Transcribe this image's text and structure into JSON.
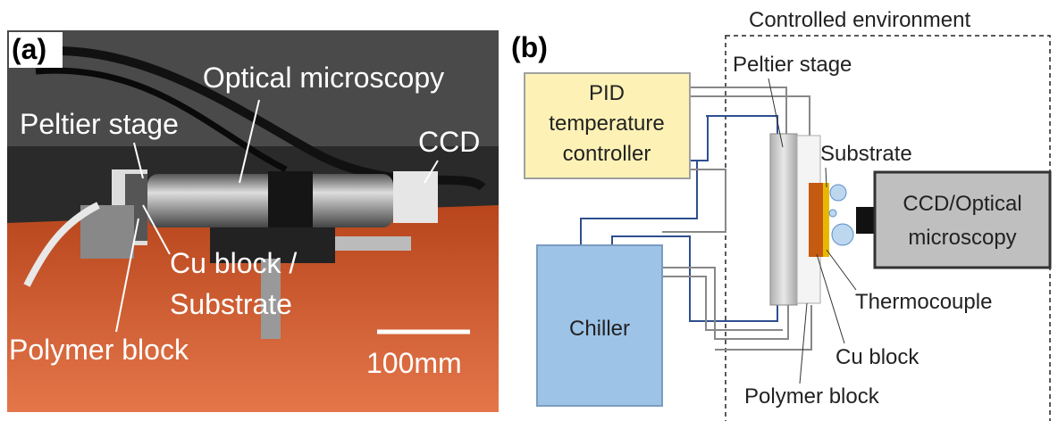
{
  "panel_a": {
    "label": "(a)",
    "annotations": {
      "optical_microscopy": "Optical microscopy",
      "peltier_stage": "Peltier stage",
      "ccd": "CCD",
      "cu_block_lines": [
        "Cu block /",
        "Substrate"
      ],
      "polymer_block": "Polymer block"
    },
    "scale_bar": "100mm"
  },
  "panel_b": {
    "label": "(b)",
    "environment": "Controlled environment",
    "controller_lines": [
      "PID",
      "temperature",
      "controller"
    ],
    "chiller": "Chiller",
    "camera_lines": [
      "CCD/Optical",
      "microscopy"
    ],
    "labels": {
      "peltier_stage": "Peltier stage",
      "substrate": "Substrate",
      "thermocouple": "Thermocouple",
      "cu_block": "Cu block",
      "polymer_block": "Polymer block"
    }
  }
}
